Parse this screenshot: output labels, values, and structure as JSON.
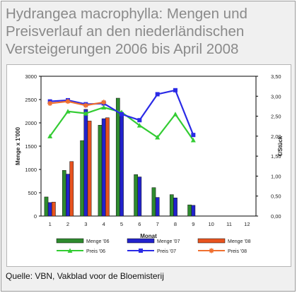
{
  "title": "Hydrangea macrophylla: Mengen und Preisverlauf an den niederländischen Versteigerungen 2006 bis April 2008",
  "source": "Quelle: VBN, Vakblad voor de Bloemisterij",
  "chart_data": {
    "type": "bar",
    "xlabel": "Monat",
    "ylabel": "Menge x 1'000",
    "y2label": "€/Stück",
    "categories": [
      "1",
      "2",
      "3",
      "4",
      "5",
      "6",
      "7",
      "8",
      "9",
      "10",
      "11",
      "12"
    ],
    "ylim": [
      0,
      3000
    ],
    "yticks": [
      "0",
      "500",
      "1000",
      "1500",
      "2000",
      "2500",
      "3000"
    ],
    "y2lim": [
      0,
      3.5
    ],
    "y2ticks": [
      "0,00",
      "0,50",
      "1,00",
      "1,50",
      "2,00",
      "2,50",
      "3,00",
      "3,50"
    ],
    "grid": false,
    "legend_position": "bottom",
    "bars": [
      {
        "name": "Menge '06",
        "color": "#2e8b2e",
        "values": [
          410,
          980,
          1620,
          1950,
          2530,
          890,
          610,
          460,
          240,
          null,
          null,
          null
        ]
      },
      {
        "name": "Menge '07",
        "color": "#2222cc",
        "values": [
          290,
          900,
          2290,
          2090,
          2190,
          840,
          400,
          390,
          230,
          null,
          null,
          null
        ]
      },
      {
        "name": "Menge '08",
        "color": "#e8531f",
        "values": [
          300,
          1170,
          2040,
          2110,
          null,
          null,
          null,
          null,
          null,
          null,
          null,
          null
        ]
      }
    ],
    "lines": [
      {
        "name": "Preis '06",
        "color": "#33cc33",
        "marker": "triangle",
        "values": [
          2.0,
          2.62,
          2.57,
          2.72,
          2.6,
          2.27,
          1.97,
          2.55,
          1.9,
          null,
          null,
          null
        ]
      },
      {
        "name": "Preis '07",
        "color": "#2a2ae6",
        "marker": "square",
        "values": [
          2.87,
          2.9,
          2.8,
          2.82,
          2.55,
          2.4,
          3.05,
          3.15,
          2.03,
          null,
          null,
          null
        ]
      },
      {
        "name": "Preis '08",
        "color": "#f07030",
        "marker": "star",
        "values": [
          2.82,
          2.87,
          2.77,
          2.85,
          null,
          null,
          null,
          null,
          null,
          null,
          null,
          null
        ]
      }
    ]
  }
}
